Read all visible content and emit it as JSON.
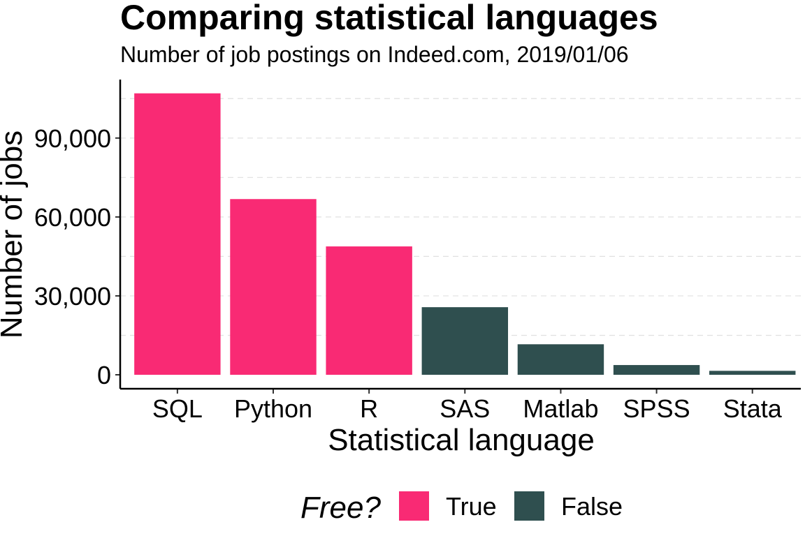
{
  "chart_data": {
    "type": "bar",
    "title": "Comparing statistical languages",
    "subtitle": "Number of job postings on Indeed.com, 2019/01/06",
    "xlabel": "Statistical language",
    "ylabel": "Number of jobs",
    "categories": [
      "SQL",
      "Python",
      "R",
      "SAS",
      "Matlab",
      "SPSS",
      "Stata"
    ],
    "values": [
      107000,
      66800,
      48800,
      25700,
      11600,
      3700,
      1500
    ],
    "free": [
      "True",
      "True",
      "True",
      "False",
      "False",
      "False",
      "False"
    ],
    "ylim": [
      0,
      112500
    ],
    "yticks": [
      0,
      30000,
      60000,
      90000
    ],
    "ytick_labels": [
      "0",
      "30,000",
      "60,000",
      "90,000"
    ],
    "grid": true,
    "legend": {
      "title": "Free?",
      "placement": "bottom",
      "entries": [
        {
          "label": "True",
          "color": "#F92A74"
        },
        {
          "label": "False",
          "color": "#2F4F4F"
        }
      ]
    }
  }
}
